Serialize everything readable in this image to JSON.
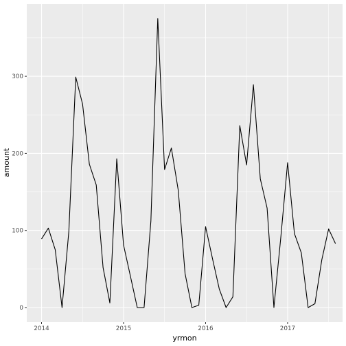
{
  "chart_data": {
    "type": "line",
    "xlabel": "yrmon",
    "ylabel": "amount",
    "x_ticks": [
      2014,
      2015,
      2016,
      2017
    ],
    "y_ticks": [
      0,
      100,
      200,
      300
    ],
    "xlim": [
      2013.82,
      2017.67
    ],
    "ylim": [
      -18.7,
      393.6
    ],
    "panel_background": "#ebebeb",
    "grid_color": "#ffffff",
    "line_color": "#000000",
    "grid": true,
    "series": [
      {
        "x": [
          2014.0,
          2014.083,
          2014.167,
          2014.25,
          2014.333,
          2014.417,
          2014.5,
          2014.583,
          2014.667,
          2014.75,
          2014.833,
          2014.917,
          2015.0,
          2015.083,
          2015.167,
          2015.25,
          2015.333,
          2015.417,
          2015.5,
          2015.583,
          2015.667,
          2015.75,
          2015.833,
          2015.917,
          2016.0,
          2016.083,
          2016.167,
          2016.25,
          2016.333,
          2016.417,
          2016.5,
          2016.583,
          2016.667,
          2016.75,
          2016.833,
          2016.917,
          2017.0,
          2017.083,
          2017.167,
          2017.25,
          2017.333,
          2017.417,
          2017.5,
          2017.583
        ],
        "y": [
          89,
          103,
          75,
          0,
          99,
          299,
          264,
          186,
          159,
          52,
          6,
          193,
          81,
          41,
          0,
          0,
          112,
          375,
          179,
          207,
          152,
          44,
          0,
          3,
          105,
          64,
          24,
          0,
          14,
          236,
          185,
          289,
          167,
          129,
          0,
          91,
          188,
          96,
          71,
          0,
          5,
          62,
          102,
          83
        ]
      }
    ]
  }
}
